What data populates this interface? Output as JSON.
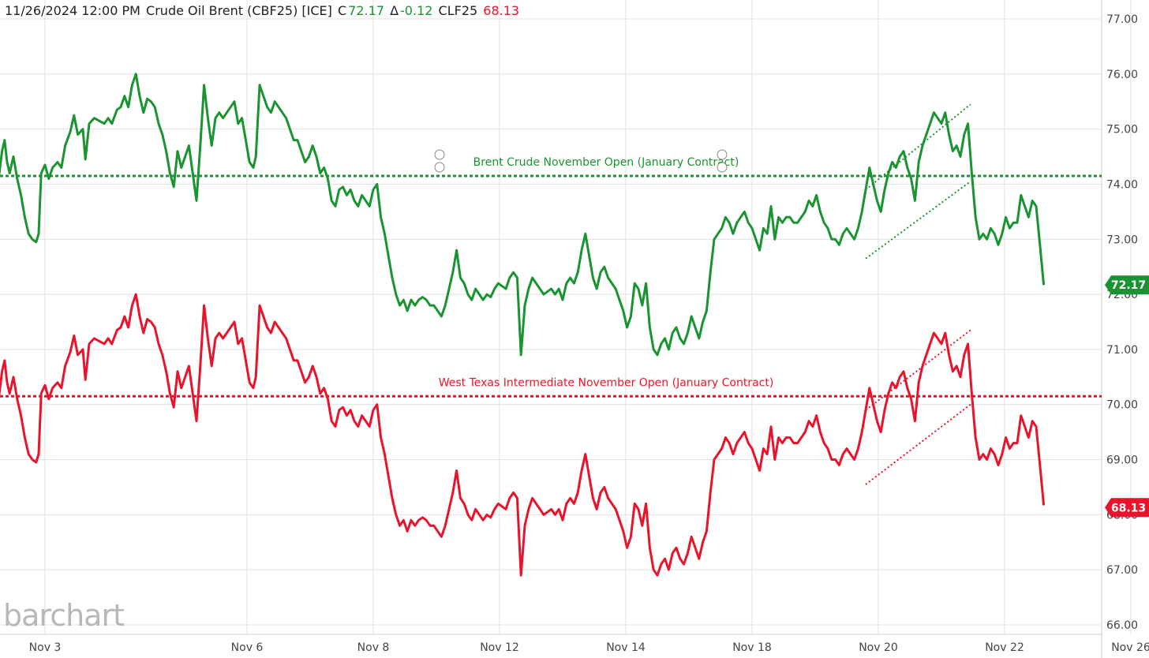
{
  "header": {
    "datetime": "11/26/2024 12:00 PM",
    "instrument": "Crude Oil Brent (CBF25) [ICE]",
    "close_prefix": "C",
    "close_value": "72.17",
    "change_prefix": "Δ",
    "change_value": "-0.12",
    "compare_symbol": "CLF25",
    "compare_value": "68.13"
  },
  "watermark": "barchart",
  "colors": {
    "brent": "#1a9431",
    "wti": "#e8142c",
    "grid": "#e1e1e1"
  },
  "chart_data": {
    "type": "line",
    "y_ticks": [
      "77.00",
      "76.00",
      "75.00",
      "74.00",
      "73.00",
      "72.00",
      "71.00",
      "70.00",
      "69.00",
      "68.00",
      "67.00",
      "66.00"
    ],
    "ylim": [
      66,
      77.2
    ],
    "x_ticks": [
      "Nov 3",
      "Nov 6",
      "Nov 8",
      "Nov 12",
      "Nov 14",
      "Nov 18",
      "Nov 20",
      "Nov 22",
      "Nov 26"
    ],
    "x_tick_positions": [
      0.4,
      2.0,
      3.0,
      4.0,
      5.0,
      6.0,
      7.0,
      8.0,
      9.0
    ],
    "xlim": [
      0,
      9.26
    ],
    "series": [
      {
        "name": "Crude Oil Brent (CBF25)",
        "color": "#1a9431",
        "last": "72.17",
        "points": [
          [
            0.0,
            74.1
          ],
          [
            0.03,
            74.05
          ],
          [
            0.06,
            74.6
          ],
          [
            0.08,
            74.8
          ],
          [
            0.1,
            74.4
          ],
          [
            0.12,
            74.2
          ],
          [
            0.15,
            74.5
          ],
          [
            0.18,
            74.1
          ],
          [
            0.21,
            73.8
          ],
          [
            0.24,
            73.4
          ],
          [
            0.27,
            73.1
          ],
          [
            0.3,
            73.0
          ],
          [
            0.33,
            72.95
          ],
          [
            0.35,
            73.1
          ],
          [
            0.37,
            74.2
          ],
          [
            0.4,
            74.35
          ],
          [
            0.43,
            74.1
          ],
          [
            0.46,
            74.3
          ],
          [
            0.5,
            74.4
          ],
          [
            0.53,
            74.3
          ],
          [
            0.56,
            74.7
          ],
          [
            0.6,
            74.95
          ],
          [
            0.63,
            75.25
          ],
          [
            0.66,
            74.9
          ],
          [
            0.7,
            75.0
          ],
          [
            0.72,
            74.45
          ],
          [
            0.75,
            75.1
          ],
          [
            0.79,
            75.2
          ],
          [
            0.83,
            75.15
          ],
          [
            0.87,
            75.1
          ],
          [
            0.9,
            75.2
          ],
          [
            0.93,
            75.1
          ],
          [
            0.97,
            75.35
          ],
          [
            1.0,
            75.4
          ],
          [
            1.03,
            75.6
          ],
          [
            1.06,
            75.4
          ],
          [
            1.09,
            75.8
          ],
          [
            1.12,
            76.0
          ],
          [
            1.15,
            75.6
          ],
          [
            1.18,
            75.3
          ],
          [
            1.21,
            75.55
          ],
          [
            1.24,
            75.5
          ],
          [
            1.27,
            75.4
          ],
          [
            1.3,
            75.1
          ],
          [
            1.33,
            74.9
          ],
          [
            1.36,
            74.6
          ],
          [
            1.39,
            74.2
          ],
          [
            1.42,
            73.95
          ],
          [
            1.45,
            74.6
          ],
          [
            1.48,
            74.3
          ],
          [
            1.51,
            74.5
          ],
          [
            1.54,
            74.7
          ],
          [
            1.57,
            74.2
          ],
          [
            1.6,
            73.7
          ],
          [
            1.63,
            74.7
          ],
          [
            1.66,
            75.8
          ],
          [
            1.69,
            75.2
          ],
          [
            1.72,
            74.7
          ],
          [
            1.75,
            75.2
          ],
          [
            1.78,
            75.3
          ],
          [
            1.81,
            75.2
          ],
          [
            1.84,
            75.3
          ],
          [
            1.87,
            75.4
          ],
          [
            1.9,
            75.5
          ],
          [
            1.93,
            75.1
          ],
          [
            1.96,
            75.2
          ],
          [
            1.99,
            74.8
          ],
          [
            2.02,
            74.4
          ],
          [
            2.05,
            74.3
          ],
          [
            2.07,
            74.5
          ],
          [
            2.1,
            75.8
          ],
          [
            2.13,
            75.6
          ],
          [
            2.16,
            75.4
          ],
          [
            2.19,
            75.3
          ],
          [
            2.22,
            75.5
          ],
          [
            2.25,
            75.4
          ],
          [
            2.28,
            75.3
          ],
          [
            2.31,
            75.2
          ],
          [
            2.34,
            75.0
          ],
          [
            2.37,
            74.8
          ],
          [
            2.4,
            74.8
          ],
          [
            2.43,
            74.6
          ],
          [
            2.46,
            74.4
          ],
          [
            2.49,
            74.5
          ],
          [
            2.52,
            74.7
          ],
          [
            2.55,
            74.5
          ],
          [
            2.58,
            74.2
          ],
          [
            2.61,
            74.3
          ],
          [
            2.64,
            74.1
          ],
          [
            2.67,
            73.7
          ],
          [
            2.7,
            73.6
          ],
          [
            2.73,
            73.9
          ],
          [
            2.76,
            73.95
          ],
          [
            2.79,
            73.8
          ],
          [
            2.82,
            73.9
          ],
          [
            2.85,
            73.7
          ],
          [
            2.88,
            73.6
          ],
          [
            2.91,
            73.8
          ],
          [
            2.94,
            73.7
          ],
          [
            2.97,
            73.6
          ],
          [
            3.0,
            73.9
          ],
          [
            3.03,
            74.0
          ],
          [
            3.06,
            73.4
          ],
          [
            3.09,
            73.1
          ],
          [
            3.12,
            72.7
          ],
          [
            3.15,
            72.3
          ],
          [
            3.18,
            72.0
          ],
          [
            3.21,
            71.8
          ],
          [
            3.24,
            71.9
          ],
          [
            3.27,
            71.7
          ],
          [
            3.3,
            71.9
          ],
          [
            3.33,
            71.8
          ],
          [
            3.36,
            71.9
          ],
          [
            3.39,
            71.95
          ],
          [
            3.42,
            71.9
          ],
          [
            3.45,
            71.8
          ],
          [
            3.48,
            71.8
          ],
          [
            3.51,
            71.7
          ],
          [
            3.54,
            71.6
          ],
          [
            3.57,
            71.8
          ],
          [
            3.6,
            72.1
          ],
          [
            3.63,
            72.4
          ],
          [
            3.66,
            72.8
          ],
          [
            3.69,
            72.3
          ],
          [
            3.72,
            72.2
          ],
          [
            3.75,
            72.0
          ],
          [
            3.78,
            71.9
          ],
          [
            3.81,
            72.1
          ],
          [
            3.84,
            72.0
          ],
          [
            3.87,
            71.9
          ],
          [
            3.9,
            72.0
          ],
          [
            3.93,
            71.95
          ],
          [
            3.96,
            72.1
          ],
          [
            3.99,
            72.2
          ],
          [
            4.02,
            72.15
          ],
          [
            4.05,
            72.1
          ],
          [
            4.08,
            72.3
          ],
          [
            4.11,
            72.4
          ],
          [
            4.14,
            72.3
          ],
          [
            4.17,
            70.9
          ],
          [
            4.2,
            71.8
          ],
          [
            4.23,
            72.1
          ],
          [
            4.26,
            72.3
          ],
          [
            4.29,
            72.2
          ],
          [
            4.32,
            72.1
          ],
          [
            4.35,
            72.0
          ],
          [
            4.38,
            72.05
          ],
          [
            4.41,
            72.1
          ],
          [
            4.44,
            72.0
          ],
          [
            4.47,
            72.1
          ],
          [
            4.5,
            71.9
          ],
          [
            4.53,
            72.2
          ],
          [
            4.56,
            72.3
          ],
          [
            4.59,
            72.2
          ],
          [
            4.62,
            72.4
          ],
          [
            4.65,
            72.8
          ],
          [
            4.68,
            73.1
          ],
          [
            4.71,
            72.7
          ],
          [
            4.74,
            72.3
          ],
          [
            4.77,
            72.1
          ],
          [
            4.8,
            72.4
          ],
          [
            4.83,
            72.5
          ],
          [
            4.86,
            72.3
          ],
          [
            4.89,
            72.2
          ],
          [
            4.92,
            72.1
          ],
          [
            4.95,
            71.9
          ],
          [
            4.98,
            71.7
          ],
          [
            5.01,
            71.4
          ],
          [
            5.04,
            71.6
          ],
          [
            5.07,
            72.2
          ],
          [
            5.1,
            72.1
          ],
          [
            5.13,
            71.8
          ],
          [
            5.16,
            72.2
          ],
          [
            5.19,
            71.4
          ],
          [
            5.22,
            71.0
          ],
          [
            5.25,
            70.9
          ],
          [
            5.28,
            71.1
          ],
          [
            5.31,
            71.2
          ],
          [
            5.34,
            71.0
          ],
          [
            5.37,
            71.3
          ],
          [
            5.4,
            71.4
          ],
          [
            5.43,
            71.2
          ],
          [
            5.46,
            71.1
          ],
          [
            5.49,
            71.3
          ],
          [
            5.52,
            71.6
          ],
          [
            5.55,
            71.4
          ],
          [
            5.58,
            71.2
          ],
          [
            5.61,
            71.5
          ],
          [
            5.64,
            71.7
          ],
          [
            5.67,
            72.4
          ],
          [
            5.7,
            73.0
          ],
          [
            5.73,
            73.1
          ],
          [
            5.76,
            73.2
          ],
          [
            5.79,
            73.4
          ],
          [
            5.82,
            73.3
          ],
          [
            5.85,
            73.1
          ],
          [
            5.88,
            73.3
          ],
          [
            5.91,
            73.4
          ],
          [
            5.94,
            73.5
          ],
          [
            5.97,
            73.3
          ],
          [
            6.0,
            73.2
          ],
          [
            6.03,
            73.0
          ],
          [
            6.06,
            72.8
          ],
          [
            6.09,
            73.2
          ],
          [
            6.12,
            73.1
          ],
          [
            6.15,
            73.6
          ],
          [
            6.18,
            73.0
          ],
          [
            6.21,
            73.4
          ],
          [
            6.24,
            73.3
          ],
          [
            6.27,
            73.4
          ],
          [
            6.3,
            73.4
          ],
          [
            6.33,
            73.3
          ],
          [
            6.36,
            73.3
          ],
          [
            6.39,
            73.4
          ],
          [
            6.42,
            73.5
          ],
          [
            6.45,
            73.7
          ],
          [
            6.48,
            73.6
          ],
          [
            6.51,
            73.8
          ],
          [
            6.54,
            73.5
          ],
          [
            6.57,
            73.3
          ],
          [
            6.6,
            73.2
          ],
          [
            6.63,
            73.0
          ],
          [
            6.66,
            73.0
          ],
          [
            6.69,
            72.9
          ],
          [
            6.72,
            73.1
          ],
          [
            6.75,
            73.2
          ],
          [
            6.78,
            73.1
          ],
          [
            6.81,
            73.0
          ],
          [
            6.84,
            73.2
          ],
          [
            6.87,
            73.5
          ],
          [
            6.9,
            73.9
          ],
          [
            6.93,
            74.3
          ],
          [
            6.96,
            74.0
          ],
          [
            6.99,
            73.7
          ],
          [
            7.02,
            73.5
          ],
          [
            7.05,
            73.9
          ],
          [
            7.08,
            74.2
          ],
          [
            7.11,
            74.4
          ],
          [
            7.14,
            74.3
          ],
          [
            7.17,
            74.5
          ],
          [
            7.2,
            74.6
          ],
          [
            7.23,
            74.3
          ],
          [
            7.26,
            74.1
          ],
          [
            7.29,
            73.7
          ],
          [
            7.32,
            74.4
          ],
          [
            7.35,
            74.7
          ],
          [
            7.38,
            74.9
          ],
          [
            7.41,
            75.1
          ],
          [
            7.44,
            75.3
          ],
          [
            7.47,
            75.2
          ],
          [
            7.5,
            75.1
          ],
          [
            7.53,
            75.3
          ],
          [
            7.56,
            74.9
          ],
          [
            7.59,
            74.6
          ],
          [
            7.62,
            74.7
          ],
          [
            7.65,
            74.5
          ],
          [
            7.68,
            74.9
          ],
          [
            7.71,
            75.1
          ],
          [
            7.74,
            74.2
          ],
          [
            7.77,
            73.4
          ],
          [
            7.8,
            73.0
          ],
          [
            7.83,
            73.1
          ],
          [
            7.86,
            73.0
          ],
          [
            7.89,
            73.2
          ],
          [
            7.92,
            73.1
          ],
          [
            7.95,
            72.9
          ],
          [
            7.98,
            73.1
          ],
          [
            8.01,
            73.4
          ],
          [
            8.04,
            73.2
          ],
          [
            8.07,
            73.3
          ],
          [
            8.1,
            73.3
          ],
          [
            8.13,
            73.8
          ],
          [
            8.16,
            73.6
          ],
          [
            8.19,
            73.4
          ],
          [
            8.22,
            73.7
          ],
          [
            8.25,
            73.6
          ],
          [
            8.28,
            72.9
          ],
          [
            8.31,
            72.17
          ]
        ]
      },
      {
        "name": "CLF25",
        "color": "#e8142c",
        "last": "68.13",
        "offset_from_brent": 4.0
      }
    ],
    "annotations": [
      {
        "label": "Brent Crude November Open (January Contract)",
        "series": "brent",
        "y": 74.15
      },
      {
        "label": "West Texas Intermediate November Open (January Contract)",
        "series": "wti",
        "y": 70.15
      }
    ],
    "channels": [
      {
        "series": "brent",
        "upper": [
          [
            6.9,
            73.9
          ],
          [
            7.73,
            75.45
          ]
        ],
        "lower": [
          [
            6.9,
            72.65
          ],
          [
            7.73,
            74.05
          ]
        ]
      },
      {
        "series": "wti",
        "upper": [
          [
            6.9,
            69.9
          ],
          [
            7.73,
            71.35
          ]
        ],
        "lower": [
          [
            6.9,
            68.55
          ],
          [
            7.73,
            70.0
          ]
        ]
      }
    ]
  }
}
